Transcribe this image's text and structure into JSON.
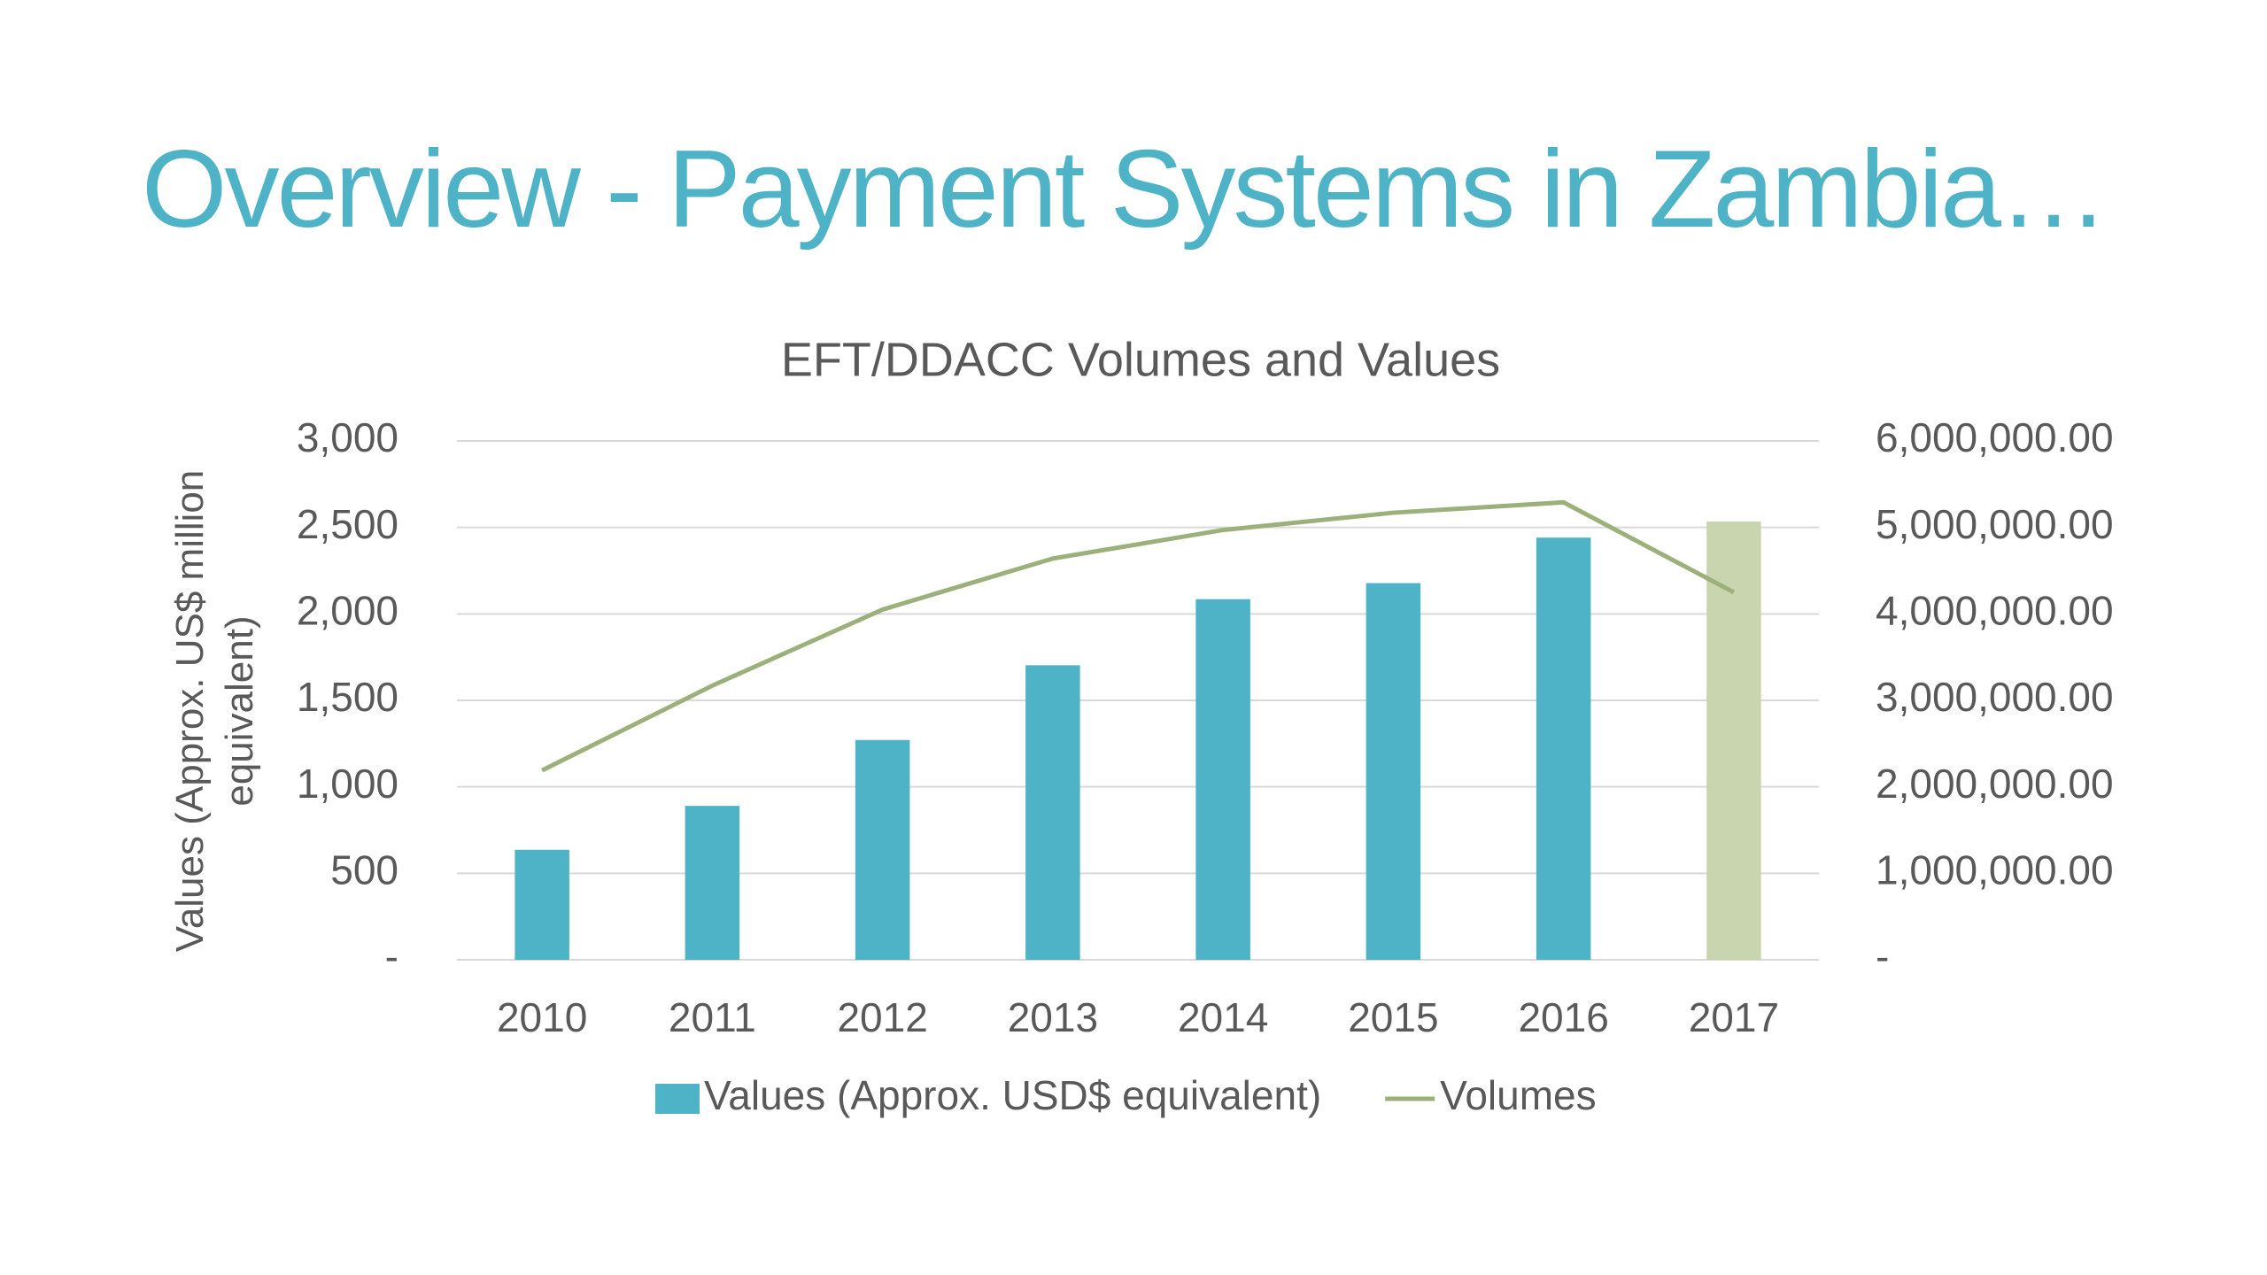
{
  "slide_title": "Overview - Payment Systems in Zambia…",
  "chart_data": {
    "type": "bar_line",
    "title": "EFT/DDACC Volumes and Values",
    "ylabel": "Values (Approx. US$ million equivalent)",
    "categories": [
      "2010",
      "2011",
      "2012",
      "2013",
      "2014",
      "2015",
      "2016",
      "2017"
    ],
    "series": [
      {
        "name": "Values (Approx. USD$ equivalent)",
        "type": "bar",
        "color": "#4fb3c7",
        "colors": [
          "#4fb3c7",
          "#4fb3c7",
          "#4fb3c7",
          "#4fb3c7",
          "#4fb3c7",
          "#4fb3c7",
          "#4fb3c7",
          "#c9d5ae"
        ],
        "values": [
          636,
          890,
          1271,
          1703,
          2085,
          2178,
          2441,
          2534
        ]
      },
      {
        "name": "Volumes",
        "type": "line",
        "axis": "y2",
        "color": "#9bb07a",
        "values": [
          2190000,
          3170000,
          4050000,
          4640000,
          4970000,
          5170000,
          5290000,
          4250000
        ]
      }
    ],
    "ylim": [
      0,
      3000
    ],
    "yticks": [
      {
        "value": 0,
        "label": "-"
      },
      500,
      {
        "value": 1000,
        "label": "1,000"
      },
      {
        "value": 1500,
        "label": "1,500"
      },
      {
        "value": 2000,
        "label": "2,000"
      },
      {
        "value": 2500,
        "label": "2,500"
      },
      {
        "value": 3000,
        "label": "3,000"
      }
    ],
    "y2lim": [
      0,
      6000000
    ],
    "y2ticks": [
      {
        "value": 0,
        "label": "-"
      },
      {
        "value": 1000000,
        "label": "1,000,000.00"
      },
      {
        "value": 2000000,
        "label": "2,000,000.00"
      },
      {
        "value": 3000000,
        "label": "3,000,000.00"
      },
      {
        "value": 4000000,
        "label": "4,000,000.00"
      },
      {
        "value": 5000000,
        "label": "5,000,000.00"
      },
      {
        "value": 6000000,
        "label": "6,000,000.00"
      }
    ],
    "grid": true,
    "legend": "bottom"
  }
}
